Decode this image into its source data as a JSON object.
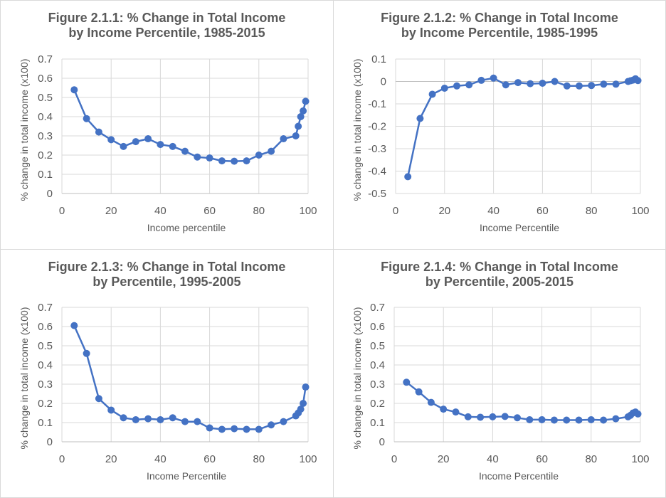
{
  "chart_data": [
    {
      "type": "line",
      "title_line1": "Figure 2.1.1: % Change in Total Income",
      "title_line2": "by Income Percentile, 1985-2015",
      "xlabel": "Income percentile",
      "ylabel": "% change in total income (x100)",
      "xlim": [
        0,
        100
      ],
      "ylim": [
        0,
        0.7
      ],
      "xticks": [
        0,
        20,
        40,
        60,
        80,
        100
      ],
      "yticks": [
        0,
        0.1,
        0.2,
        0.3,
        0.4,
        0.5,
        0.6,
        0.7
      ],
      "ytick_labels": [
        "0",
        "0.1",
        "0.2",
        "0.3",
        "0.4",
        "0.5",
        "0.6",
        "0.7"
      ],
      "grid": true,
      "color": "#4472c4",
      "series": [
        {
          "x": [
            5,
            10,
            15,
            20,
            25,
            30,
            35,
            40,
            45,
            50,
            55,
            60,
            65,
            70,
            75,
            80,
            85,
            90,
            95,
            96,
            97,
            98,
            99
          ],
          "y": [
            0.54,
            0.39,
            0.32,
            0.28,
            0.245,
            0.27,
            0.285,
            0.255,
            0.245,
            0.22,
            0.19,
            0.185,
            0.17,
            0.168,
            0.17,
            0.2,
            0.22,
            0.285,
            0.3,
            0.35,
            0.4,
            0.43,
            0.48
          ]
        }
      ]
    },
    {
      "type": "line",
      "title_line1": "Figure 2.1.2: % Change in Total Income",
      "title_line2": "by Income Percentile, 1985-1995",
      "xlabel": "Income Percentile",
      "ylabel": "% change in total income (x100)",
      "xlim": [
        0,
        100
      ],
      "ylim": [
        -0.5,
        0.1
      ],
      "xticks": [
        0,
        20,
        40,
        60,
        80,
        100
      ],
      "yticks": [
        -0.5,
        -0.4,
        -0.3,
        -0.2,
        -0.1,
        0,
        0.1
      ],
      "ytick_labels": [
        "-0.5",
        "-0.4",
        "-0.3",
        "-0.2",
        "-0.1",
        "0",
        "0.1"
      ],
      "grid": true,
      "color": "#4472c4",
      "series": [
        {
          "x": [
            5,
            10,
            15,
            20,
            25,
            30,
            35,
            40,
            45,
            50,
            55,
            60,
            65,
            70,
            75,
            80,
            85,
            90,
            95,
            96,
            97,
            98,
            99
          ],
          "y": [
            -0.425,
            -0.165,
            -0.057,
            -0.03,
            -0.02,
            -0.015,
            0.005,
            0.015,
            -0.015,
            -0.005,
            -0.01,
            -0.008,
            0,
            -0.02,
            -0.02,
            -0.018,
            -0.012,
            -0.012,
            0,
            0.003,
            0.006,
            0.012,
            0.004
          ]
        }
      ]
    },
    {
      "type": "line",
      "title_line1": "Figure 2.1.3: % Change in Total Income",
      "title_line2": "by Percentile, 1995-2005",
      "xlabel": "Income Percentile",
      "ylabel": "% change in total income (x100)",
      "xlim": [
        0,
        100
      ],
      "ylim": [
        0,
        0.7
      ],
      "xticks": [
        0,
        20,
        40,
        60,
        80,
        100
      ],
      "yticks": [
        0,
        0.1,
        0.2,
        0.3,
        0.4,
        0.5,
        0.6,
        0.7
      ],
      "ytick_labels": [
        "0",
        "0.1",
        "0.2",
        "0.3",
        "0.4",
        "0.5",
        "0.6",
        "0.7"
      ],
      "grid": true,
      "color": "#4472c4",
      "series": [
        {
          "x": [
            5,
            10,
            15,
            20,
            25,
            30,
            35,
            40,
            45,
            50,
            55,
            60,
            65,
            70,
            75,
            80,
            85,
            90,
            95,
            96,
            97,
            98,
            99
          ],
          "y": [
            0.605,
            0.46,
            0.225,
            0.165,
            0.125,
            0.115,
            0.12,
            0.115,
            0.125,
            0.105,
            0.105,
            0.072,
            0.065,
            0.068,
            0.065,
            0.065,
            0.088,
            0.105,
            0.135,
            0.15,
            0.17,
            0.2,
            0.285
          ]
        }
      ]
    },
    {
      "type": "line",
      "title_line1": "Figure 2.1.4: % Change in Total Income",
      "title_line2": "by Percentile, 2005-2015",
      "xlabel": "Income Percentile",
      "ylabel": "% change in total income (x100)",
      "xlim": [
        0,
        100
      ],
      "ylim": [
        0,
        0.7
      ],
      "xticks": [
        0,
        20,
        40,
        60,
        80,
        100
      ],
      "yticks": [
        0,
        0.1,
        0.2,
        0.3,
        0.4,
        0.5,
        0.6,
        0.7
      ],
      "ytick_labels": [
        "0",
        "0.1",
        "0.2",
        "0.3",
        "0.4",
        "0.5",
        "0.6",
        "0.7"
      ],
      "grid": true,
      "color": "#4472c4",
      "series": [
        {
          "x": [
            5,
            10,
            15,
            20,
            25,
            30,
            35,
            40,
            45,
            50,
            55,
            60,
            65,
            70,
            75,
            80,
            85,
            90,
            95,
            96,
            97,
            98,
            99
          ],
          "y": [
            0.31,
            0.26,
            0.205,
            0.17,
            0.155,
            0.13,
            0.128,
            0.13,
            0.132,
            0.125,
            0.115,
            0.115,
            0.113,
            0.113,
            0.113,
            0.115,
            0.113,
            0.12,
            0.13,
            0.138,
            0.15,
            0.155,
            0.145
          ]
        }
      ]
    }
  ]
}
